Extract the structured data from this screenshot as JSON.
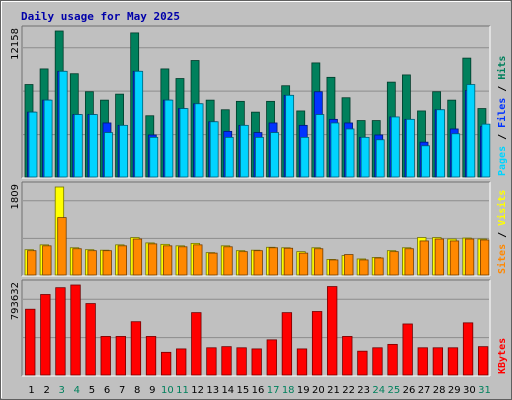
{
  "title": "Daily usage for May 2025",
  "colors": {
    "frame_bg": "#c0c0c0",
    "plot_bg": "#c0c0c0",
    "title": "#0000aa",
    "hits": "#00805c",
    "files": "#0033ff",
    "pages": "#00d4ff",
    "visits": "#ffff00",
    "sites": "#ff8800",
    "kbytes": "#ff0000",
    "day_normal": "#000000",
    "day_weekend": "#00805c"
  },
  "chart_data": [
    {
      "type": "bar",
      "name": "hits-files-pages",
      "ylabel_parts": [
        "Pages",
        "Files",
        "Hits"
      ],
      "max_label": "12158",
      "ymax": 12158,
      "categories": [
        "1",
        "2",
        "3",
        "4",
        "5",
        "6",
        "7",
        "8",
        "9",
        "10",
        "11",
        "12",
        "13",
        "14",
        "15",
        "16",
        "17",
        "18",
        "19",
        "20",
        "21",
        "22",
        "23",
        "24",
        "25",
        "26",
        "27",
        "28",
        "29",
        "30",
        "31"
      ],
      "series": [
        {
          "name": "Hits",
          "values": [
            7700,
            9000,
            12158,
            8600,
            7100,
            6400,
            6900,
            12000,
            5100,
            9000,
            8200,
            9700,
            6400,
            5600,
            6300,
            5400,
            6300,
            7600,
            5500,
            9500,
            8300,
            6600,
            4700,
            4700,
            7900,
            8500,
            5500,
            7100,
            6400,
            9900,
            5700
          ]
        },
        {
          "name": "Files",
          "values": [
            5400,
            6400,
            8800,
            5200,
            5200,
            4500,
            4300,
            8800,
            3500,
            6400,
            5700,
            6100,
            4600,
            3800,
            4300,
            3700,
            4500,
            6800,
            4300,
            7100,
            4800,
            4500,
            3300,
            3500,
            5000,
            4800,
            2900,
            5600,
            4000,
            7200,
            4200
          ]
        },
        {
          "name": "Pages",
          "values": [
            5400,
            6400,
            8800,
            5200,
            5200,
            3700,
            4300,
            8800,
            3300,
            6400,
            5700,
            6100,
            4600,
            3300,
            4300,
            3300,
            3700,
            6800,
            3300,
            5200,
            4500,
            4000,
            3300,
            3100,
            5000,
            4800,
            2600,
            5600,
            3600,
            7700,
            4400
          ]
        }
      ]
    },
    {
      "type": "bar",
      "name": "sites-visits",
      "ylabel_parts": [
        "Sites",
        "Visits"
      ],
      "max_label": "1809",
      "ymax": 1809,
      "categories": [
        "1",
        "2",
        "3",
        "4",
        "5",
        "6",
        "7",
        "8",
        "9",
        "10",
        "11",
        "12",
        "13",
        "14",
        "15",
        "16",
        "17",
        "18",
        "19",
        "20",
        "21",
        "22",
        "23",
        "24",
        "25",
        "26",
        "27",
        "28",
        "29",
        "30",
        "31"
      ],
      "series": [
        {
          "name": "Visits",
          "values": [
            520,
            620,
            1809,
            560,
            520,
            510,
            620,
            770,
            660,
            630,
            600,
            650,
            460,
            600,
            500,
            510,
            570,
            560,
            480,
            560,
            320,
            400,
            330,
            360,
            500,
            560,
            770,
            770,
            740,
            760,
            740
          ]
        },
        {
          "name": "Sites",
          "values": [
            500,
            600,
            1180,
            540,
            500,
            500,
            600,
            740,
            640,
            600,
            580,
            620,
            450,
            580,
            480,
            500,
            560,
            550,
            450,
            540,
            310,
            420,
            310,
            350,
            480,
            540,
            700,
            740,
            700,
            740,
            720
          ]
        }
      ]
    },
    {
      "type": "bar",
      "name": "kbytes",
      "ylabel_parts": [
        "KBytes"
      ],
      "max_label": "793632",
      "ymax": 793632,
      "categories": [
        "1",
        "2",
        "3",
        "4",
        "5",
        "6",
        "7",
        "8",
        "9",
        "10",
        "11",
        "12",
        "13",
        "14",
        "15",
        "16",
        "17",
        "18",
        "19",
        "20",
        "21",
        "22",
        "23",
        "24",
        "25",
        "26",
        "27",
        "28",
        "29",
        "30",
        "31"
      ],
      "series": [
        {
          "name": "KBytes",
          "values": [
            580000,
            710000,
            770000,
            793632,
            630000,
            340000,
            340000,
            470000,
            340000,
            200000,
            230000,
            550000,
            240000,
            250000,
            240000,
            230000,
            310000,
            550000,
            230000,
            560000,
            780000,
            340000,
            210000,
            240000,
            270000,
            450000,
            240000,
            240000,
            240000,
            460000,
            250000
          ]
        }
      ]
    }
  ],
  "days": [
    {
      "label": "1",
      "weekend": false
    },
    {
      "label": "2",
      "weekend": false
    },
    {
      "label": "3",
      "weekend": true
    },
    {
      "label": "4",
      "weekend": true
    },
    {
      "label": "5",
      "weekend": false
    },
    {
      "label": "6",
      "weekend": false
    },
    {
      "label": "7",
      "weekend": false
    },
    {
      "label": "8",
      "weekend": false
    },
    {
      "label": "9",
      "weekend": false
    },
    {
      "label": "10",
      "weekend": true
    },
    {
      "label": "11",
      "weekend": true
    },
    {
      "label": "12",
      "weekend": false
    },
    {
      "label": "13",
      "weekend": false
    },
    {
      "label": "14",
      "weekend": false
    },
    {
      "label": "15",
      "weekend": false
    },
    {
      "label": "16",
      "weekend": false
    },
    {
      "label": "17",
      "weekend": true
    },
    {
      "label": "18",
      "weekend": true
    },
    {
      "label": "19",
      "weekend": false
    },
    {
      "label": "20",
      "weekend": false
    },
    {
      "label": "21",
      "weekend": false
    },
    {
      "label": "22",
      "weekend": false
    },
    {
      "label": "23",
      "weekend": false
    },
    {
      "label": "24",
      "weekend": true
    },
    {
      "label": "25",
      "weekend": true
    },
    {
      "label": "26",
      "weekend": false
    },
    {
      "label": "27",
      "weekend": false
    },
    {
      "label": "28",
      "weekend": false
    },
    {
      "label": "29",
      "weekend": false
    },
    {
      "label": "30",
      "weekend": false
    },
    {
      "label": "31",
      "weekend": true
    }
  ]
}
